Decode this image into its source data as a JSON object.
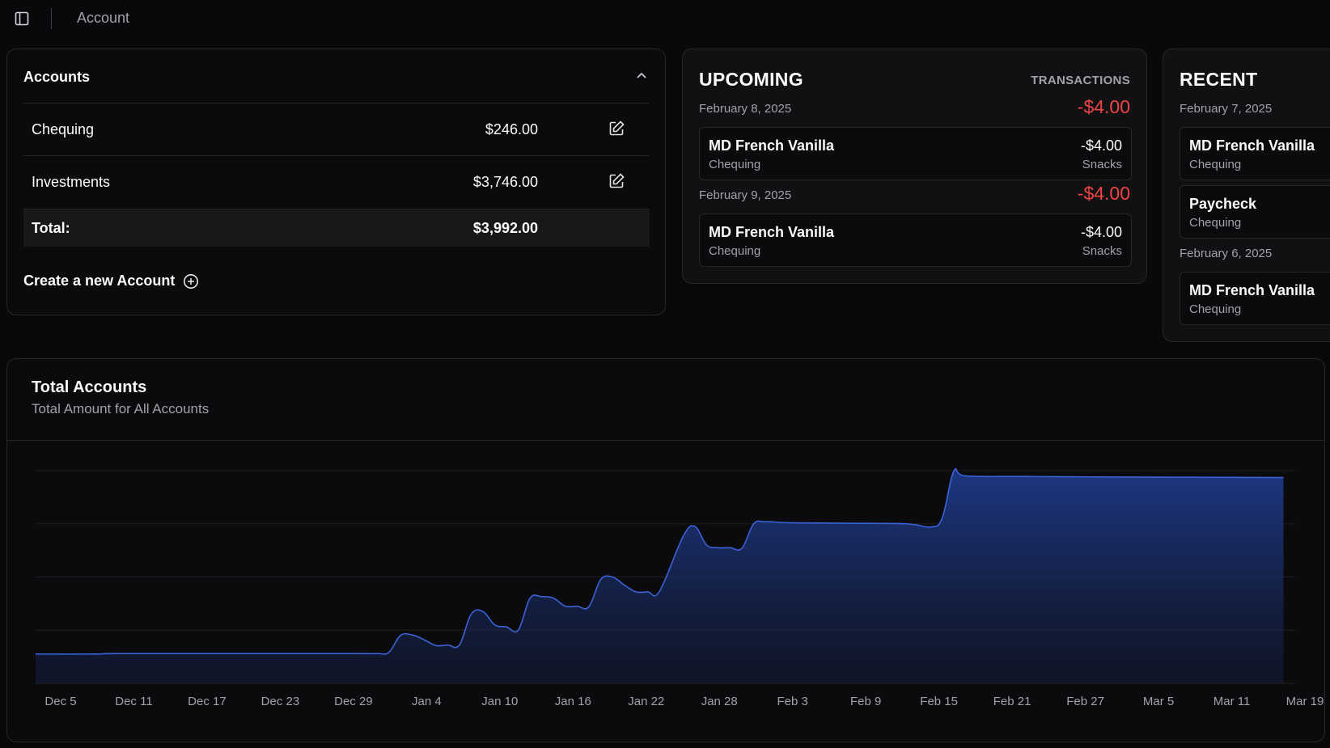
{
  "topbar": {
    "title": "Account"
  },
  "accounts": {
    "header": "Accounts",
    "rows": [
      {
        "name": "Chequing",
        "amount": "$246.00"
      },
      {
        "name": "Investments",
        "amount": "$3,746.00"
      }
    ],
    "total_label": "Total:",
    "total_amount": "$3,992.00",
    "create_label": "Create a new Account"
  },
  "upcoming": {
    "title": "UPCOMING",
    "subtitle": "TRANSACTIONS",
    "groups": [
      {
        "date": "February 8, 2025",
        "total": "-$4.00",
        "tx": {
          "name": "MD French Vanilla",
          "account": "Chequing",
          "amount": "-$4.00",
          "category": "Snacks"
        }
      },
      {
        "date": "February 9, 2025",
        "total": "-$4.00",
        "tx": {
          "name": "MD French Vanilla",
          "account": "Chequing",
          "amount": "-$4.00",
          "category": "Snacks"
        }
      }
    ]
  },
  "recent": {
    "title": "RECENT",
    "groups": [
      {
        "date": "February 7, 2025",
        "items": [
          {
            "name": "MD French Vanilla",
            "account": "Chequing"
          },
          {
            "name": "Paycheck",
            "account": "Chequing"
          }
        ]
      },
      {
        "date": "February 6, 2025",
        "items": [
          {
            "name": "MD French Vanilla",
            "account": "Chequing"
          }
        ]
      }
    ]
  },
  "chart": {
    "title": "Total Accounts",
    "subtitle": "Total Amount for All Accounts"
  },
  "chart_data": {
    "type": "area",
    "title": "Total Accounts",
    "subtitle": "Total Amount for All Accounts",
    "xlabel": "",
    "ylabel": "",
    "ylim": [
      0,
      4000
    ],
    "grid": true,
    "x_ticks": [
      "Dec 5",
      "Dec 11",
      "Dec 17",
      "Dec 23",
      "Dec 29",
      "Jan 4",
      "Jan 10",
      "Jan 16",
      "Jan 22",
      "Jan 28",
      "Feb 3",
      "Feb 9",
      "Feb 15",
      "Feb 21",
      "Feb 27",
      "Mar 5",
      "Mar 11",
      "Mar 19"
    ],
    "x_start": "2024-12-03",
    "x_end": "2025-03-20",
    "series": [
      {
        "points": [
          [
            "2024-12-03",
            550
          ],
          [
            "2024-12-08",
            550
          ],
          [
            "2024-12-10",
            560
          ],
          [
            "2024-12-20",
            560
          ],
          [
            "2024-12-30",
            560
          ],
          [
            "2025-01-01",
            560
          ],
          [
            "2025-01-02",
            580
          ],
          [
            "2025-01-03",
            900
          ],
          [
            "2025-01-04",
            910
          ],
          [
            "2025-01-05",
            820
          ],
          [
            "2025-01-06",
            710
          ],
          [
            "2025-01-07",
            720
          ],
          [
            "2025-01-08",
            720
          ],
          [
            "2025-01-09",
            1300
          ],
          [
            "2025-01-10",
            1350
          ],
          [
            "2025-01-11",
            1100
          ],
          [
            "2025-01-12",
            1060
          ],
          [
            "2025-01-13",
            1000
          ],
          [
            "2025-01-14",
            1600
          ],
          [
            "2025-01-15",
            1630
          ],
          [
            "2025-01-16",
            1600
          ],
          [
            "2025-01-17",
            1450
          ],
          [
            "2025-01-18",
            1450
          ],
          [
            "2025-01-19",
            1440
          ],
          [
            "2025-01-20",
            1950
          ],
          [
            "2025-01-21",
            2000
          ],
          [
            "2025-01-22",
            1850
          ],
          [
            "2025-01-23",
            1720
          ],
          [
            "2025-01-24",
            1720
          ],
          [
            "2025-01-25",
            1730
          ],
          [
            "2025-01-27",
            2760
          ],
          [
            "2025-01-28",
            2950
          ],
          [
            "2025-01-29",
            2600
          ],
          [
            "2025-01-30",
            2550
          ],
          [
            "2025-01-31",
            2550
          ],
          [
            "2025-02-01",
            2540
          ],
          [
            "2025-02-02",
            3000
          ],
          [
            "2025-02-03",
            3040
          ],
          [
            "2025-02-05",
            3020
          ],
          [
            "2025-02-10",
            3010
          ],
          [
            "2025-02-15",
            3000
          ],
          [
            "2025-02-17",
            2940
          ],
          [
            "2025-02-18",
            3100
          ],
          [
            "2025-02-19",
            3990
          ],
          [
            "2025-02-20",
            3900
          ],
          [
            "2025-02-25",
            3890
          ],
          [
            "2025-03-05",
            3880
          ],
          [
            "2025-03-19",
            3870
          ]
        ]
      }
    ]
  }
}
